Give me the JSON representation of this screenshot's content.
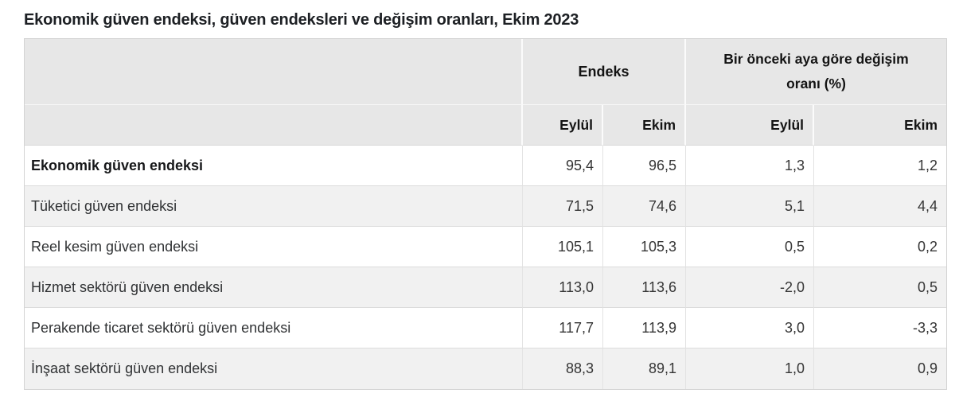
{
  "title": "Ekonomik güven endeksi, güven endeksleri ve değişim oranları, Ekim 2023",
  "table": {
    "col_groups": [
      {
        "label": "Endeks"
      },
      {
        "label": "Bir önceki aya göre değişim oranı (%)"
      }
    ],
    "sub_headers": [
      "Eylül",
      "Ekim",
      "Eylül",
      "Ekim"
    ],
    "rows": [
      {
        "label": "Ekonomik güven endeksi",
        "bold": true,
        "values": [
          "95,4",
          "96,5",
          "1,3",
          "1,2"
        ]
      },
      {
        "label": "Tüketici güven endeksi",
        "bold": false,
        "values": [
          "71,5",
          "74,6",
          "5,1",
          "4,4"
        ]
      },
      {
        "label": "Reel kesim güven endeksi",
        "bold": false,
        "values": [
          "105,1",
          "105,3",
          "0,5",
          "0,2"
        ]
      },
      {
        "label": "Hizmet sektörü güven endeksi",
        "bold": false,
        "values": [
          "113,0",
          "113,6",
          "-2,0",
          "0,5"
        ]
      },
      {
        "label": "Perakende ticaret sektörü güven endeksi",
        "bold": false,
        "values": [
          "117,7",
          "113,9",
          "3,0",
          "-3,3"
        ]
      },
      {
        "label": "İnşaat sektörü güven endeksi",
        "bold": false,
        "values": [
          "88,3",
          "89,1",
          "1,0",
          "0,9"
        ]
      }
    ]
  },
  "chart_data": {
    "type": "table",
    "title": "Ekonomik güven endeksi, güven endeksleri ve değişim oranları, Ekim 2023",
    "column_groups": [
      "Endeks",
      "Bir önceki aya göre değişim oranı (%)"
    ],
    "columns": [
      "Endeks Eylül",
      "Endeks Ekim",
      "Değişim Eylül (%)",
      "Değişim Ekim (%)"
    ],
    "rows": [
      {
        "name": "Ekonomik güven endeksi",
        "endeks_eylul": 95.4,
        "endeks_ekim": 96.5,
        "degisim_eylul": 1.3,
        "degisim_ekim": 1.2
      },
      {
        "name": "Tüketici güven endeksi",
        "endeks_eylul": 71.5,
        "endeks_ekim": 74.6,
        "degisim_eylul": 5.1,
        "degisim_ekim": 4.4
      },
      {
        "name": "Reel kesim güven endeksi",
        "endeks_eylul": 105.1,
        "endeks_ekim": 105.3,
        "degisim_eylul": 0.5,
        "degisim_ekim": 0.2
      },
      {
        "name": "Hizmet sektörü güven endeksi",
        "endeks_eylul": 113.0,
        "endeks_ekim": 113.6,
        "degisim_eylul": -2.0,
        "degisim_ekim": 0.5
      },
      {
        "name": "Perakende ticaret sektörü güven endeksi",
        "endeks_eylul": 117.7,
        "endeks_ekim": 113.9,
        "degisim_eylul": 3.0,
        "degisim_ekim": -3.3
      },
      {
        "name": "İnşaat sektörü güven endeksi",
        "endeks_eylul": 88.3,
        "endeks_ekim": 89.1,
        "degisim_eylul": 1.0,
        "degisim_ekim": 0.9
      }
    ]
  },
  "colors": {
    "header_bg": "#e7e7e7",
    "stripe_bg": "#f1f1f1",
    "outer_border": "#d4d4d4",
    "row_border": "#dcdcdc",
    "header_split": "#fbfbfb",
    "title_text": "#1d2024",
    "body_text": "#363636"
  }
}
